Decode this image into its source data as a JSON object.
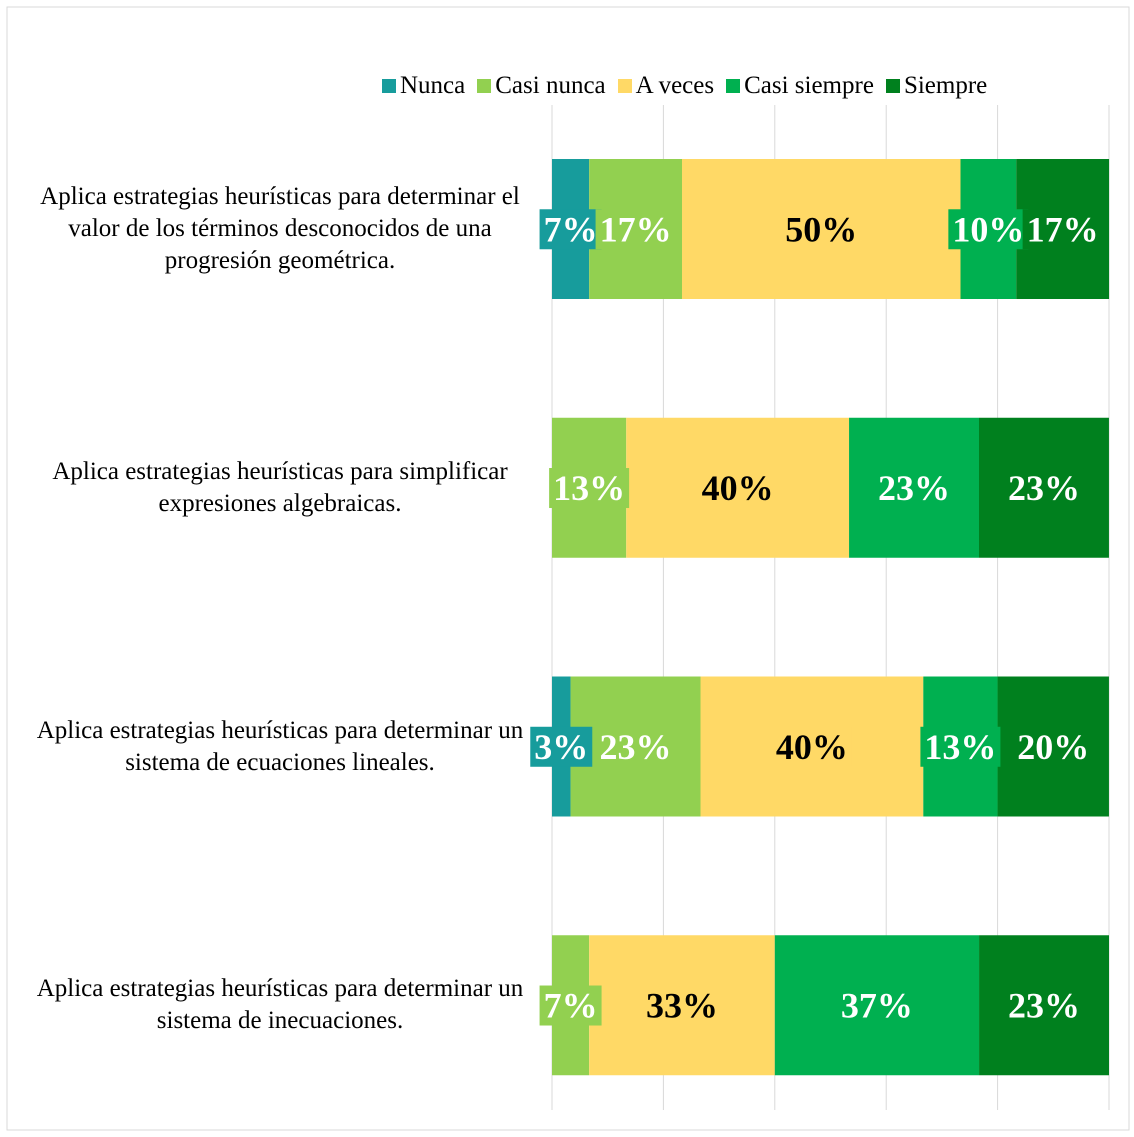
{
  "chart_data": {
    "type": "stacked_bar_horizontal",
    "categories": [
      "Aplica estrategias heurísticas para determinar el valor de los términos desconocidos de una progresión geométrica.",
      "Aplica estrategias heurísticas para simplificar expresiones algebraicas.",
      "Aplica estrategias heurísticas para determinar un sistema de ecuaciones lineales.",
      "Aplica estrategias heurísticas para determinar un sistema de inecuaciones."
    ],
    "series": [
      {
        "name": "Nunca",
        "color": "#179c9c",
        "label_color": "#ffffff",
        "values": [
          6.67,
          0,
          3.33,
          0
        ],
        "value_labels": [
          "7%",
          null,
          "3%",
          null
        ]
      },
      {
        "name": "Casi nunca",
        "color": "#92d050",
        "label_color": "#ffffff",
        "values": [
          16.67,
          13.33,
          23.33,
          6.67
        ],
        "value_labels": [
          "17%",
          "13%",
          "23%",
          "7%"
        ]
      },
      {
        "name": "A veces",
        "color": "#ffd966",
        "label_color": "#000000",
        "values": [
          50,
          40,
          40,
          33.33
        ],
        "value_labels": [
          "50%",
          "40%",
          "40%",
          "33%"
        ]
      },
      {
        "name": "Casi siempre",
        "color": "#00b050",
        "label_color": "#ffffff",
        "values": [
          10,
          23.33,
          13.33,
          36.67
        ],
        "value_labels": [
          "10%",
          "23%",
          "13%",
          "37%"
        ]
      },
      {
        "name": "Siempre",
        "color": "#00801e",
        "label_color": "#ffffff",
        "values": [
          16.67,
          23.33,
          20,
          23.33
        ],
        "value_labels": [
          "17%",
          "23%",
          "20%",
          "23%"
        ]
      }
    ],
    "xlim": [
      0,
      100
    ],
    "xticks": [
      0,
      20,
      40,
      60,
      80,
      100
    ],
    "grid": true,
    "legend": "top"
  }
}
